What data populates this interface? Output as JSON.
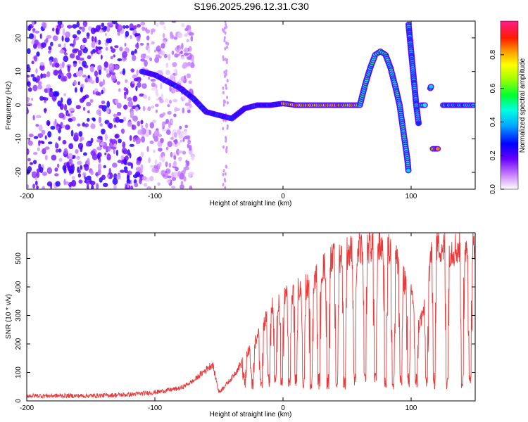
{
  "title": "S196.2025.296.12.31.C30",
  "colors": {
    "snr_line": "#e83a3a",
    "background": "#ffffff",
    "axis": "#000000",
    "colormap": [
      "#ffffff",
      "#d7b9f5",
      "#8b3bf0",
      "#4a00ff",
      "#0000ff",
      "#00b4ff",
      "#00ffd0",
      "#00ff40",
      "#a0ff00",
      "#ffff00",
      "#ff8c00",
      "#ff0000",
      "#ff0a7a",
      "#ff1493"
    ]
  },
  "chart_data": [
    {
      "type": "heatmap",
      "title": "S196.2025.296.12.31.C30",
      "xlabel": "Height of straight line (km)",
      "ylabel": "Frequency (Hz)",
      "xlim": [
        -200,
        150
      ],
      "ylim": [
        -25,
        25
      ],
      "xticks": [
        -200,
        -100,
        0,
        100
      ],
      "yticks": [
        -20,
        -10,
        0,
        10,
        20
      ],
      "xtick_labels": [
        "-200",
        "-100",
        "0",
        "100"
      ],
      "ytick_labels": [
        "-20",
        "-10",
        "0",
        "10",
        "20"
      ],
      "colorbar": {
        "label": "Normalized spectral amplitude",
        "range": [
          0,
          1
        ],
        "ticks": [
          0,
          0.2,
          0.4,
          0.6,
          0.8
        ],
        "tick_labels": [
          "0.0",
          "0.2",
          "0.4",
          "0.6",
          "0.8"
        ]
      },
      "ridge_segments": [
        {
          "name": "descending-ridge",
          "points": [
            [
              -110,
              10
            ],
            [
              -100,
              9
            ],
            [
              -90,
              7
            ],
            [
              -80,
              5
            ],
            [
              -70,
              2
            ],
            [
              -60,
              -2
            ],
            [
              -50,
              -3
            ],
            [
              -40,
              -4
            ],
            [
              -30,
              -1
            ],
            [
              -20,
              0
            ],
            [
              -10,
              0
            ],
            [
              0,
              0.5
            ]
          ],
          "amp": 0.3
        },
        {
          "name": "flat-ridge",
          "points": [
            [
              0,
              0.5
            ],
            [
              10,
              0
            ],
            [
              20,
              0
            ],
            [
              30,
              0
            ],
            [
              40,
              0
            ],
            [
              50,
              0
            ],
            [
              60,
              0
            ]
          ],
          "amp": 0.8
        },
        {
          "name": "arch-ridge",
          "points": [
            [
              60,
              0
            ],
            [
              64,
              6
            ],
            [
              68,
              11
            ],
            [
              72,
              15
            ],
            [
              76,
              16
            ],
            [
              80,
              15
            ],
            [
              84,
              11
            ],
            [
              88,
              5
            ],
            [
              91,
              0
            ],
            [
              94,
              -8
            ],
            [
              97,
              -16
            ],
            [
              98,
              -20
            ]
          ],
          "amp": 0.5
        },
        {
          "name": "steep-ridge",
          "points": [
            [
              98,
              24
            ],
            [
              100,
              16
            ],
            [
              102,
              8
            ],
            [
              104,
              0
            ],
            [
              106,
              -6
            ]
          ],
          "amp": 0.4
        },
        {
          "name": "short-segment-a",
          "points": [
            [
              108,
              0
            ],
            [
              112,
              0
            ]
          ],
          "amp": 0.5
        },
        {
          "name": "short-segment-b",
          "points": [
            [
              115,
              5
            ],
            [
              116,
              6
            ]
          ],
          "amp": 0.4
        },
        {
          "name": "short-segment-c",
          "points": [
            [
              117,
              -13
            ],
            [
              122,
              -13
            ]
          ],
          "amp": 0.9
        },
        {
          "name": "right-flat",
          "points": [
            [
              125,
              0
            ],
            [
              150,
              0
            ]
          ],
          "amp": 0.4
        }
      ],
      "noise_region": {
        "x": [
          -200,
          -110
        ],
        "y": [
          -25,
          25
        ]
      }
    },
    {
      "type": "line",
      "xlabel": "Height of straight line (km)",
      "ylabel": "SNR (10 * v/v)",
      "xlim": [
        -200,
        150
      ],
      "ylim": [
        0,
        590
      ],
      "xticks": [
        -200,
        -100,
        0,
        100
      ],
      "yticks": [
        0,
        100,
        200,
        300,
        400,
        500
      ],
      "xtick_labels": [
        "-200",
        "-100",
        "0",
        "100"
      ],
      "ytick_labels": [
        "0",
        "100",
        "200",
        "300",
        "400",
        "500"
      ],
      "envelope": [
        [
          -200,
          18
        ],
        [
          -150,
          18
        ],
        [
          -120,
          22
        ],
        [
          -100,
          30
        ],
        [
          -80,
          45
        ],
        [
          -70,
          70
        ],
        [
          -60,
          110
        ],
        [
          -55,
          130
        ],
        [
          -50,
          30
        ],
        [
          -40,
          80
        ],
        [
          -30,
          150
        ],
        [
          -20,
          220
        ],
        [
          -10,
          320
        ],
        [
          0,
          360
        ],
        [
          10,
          390
        ],
        [
          20,
          400
        ],
        [
          30,
          460
        ],
        [
          40,
          500
        ],
        [
          50,
          520
        ],
        [
          60,
          530
        ],
        [
          70,
          550
        ],
        [
          80,
          540
        ],
        [
          90,
          490
        ],
        [
          95,
          420
        ],
        [
          100,
          370
        ],
        [
          105,
          250
        ],
        [
          110,
          320
        ],
        [
          115,
          500
        ],
        [
          120,
          550
        ],
        [
          130,
          530
        ],
        [
          140,
          540
        ],
        [
          150,
          540
        ]
      ],
      "dropouts": [
        -30,
        -24,
        -17,
        -11,
        -6,
        -1,
        5,
        10,
        16,
        22,
        28,
        35,
        42,
        48,
        56,
        64,
        72,
        80,
        86,
        92,
        98,
        104,
        112,
        118,
        128,
        140,
        146
      ]
    }
  ]
}
